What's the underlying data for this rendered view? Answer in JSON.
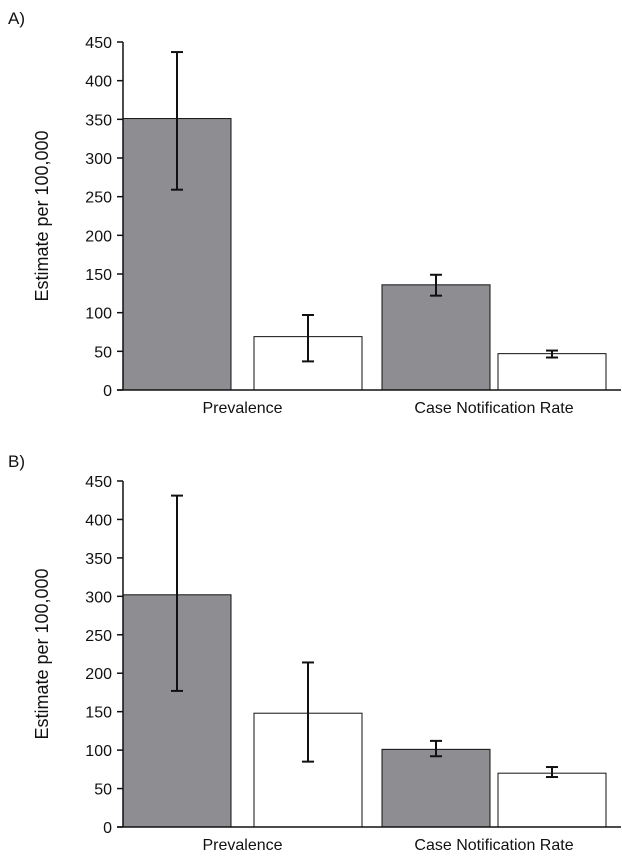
{
  "chart_data": [
    {
      "type": "bar",
      "panel_label": "A)",
      "title": "",
      "xlabel": "",
      "ylabel": "Estimate per 100,000",
      "ylim": [
        0,
        450
      ],
      "yticks": [
        0,
        50,
        100,
        150,
        200,
        250,
        300,
        350,
        400,
        450
      ],
      "grid": false,
      "legend": "none",
      "categories": [
        "Prevalence",
        "Case Notification Rate"
      ],
      "series": [
        {
          "color": "#8e8e92",
          "values": [
            351,
            136
          ],
          "error_low": [
            259,
            122
          ],
          "error_high": [
            437,
            149
          ]
        },
        {
          "color": "#ffffff",
          "values": [
            69,
            47
          ],
          "error_low": [
            37,
            42
          ],
          "error_high": [
            97,
            51
          ]
        }
      ]
    },
    {
      "type": "bar",
      "panel_label": "B)",
      "title": "",
      "xlabel": "",
      "ylabel": "Estimate per 100,000",
      "ylim": [
        0,
        450
      ],
      "yticks": [
        0,
        50,
        100,
        150,
        200,
        250,
        300,
        350,
        400,
        450
      ],
      "grid": false,
      "legend": "none",
      "categories": [
        "Prevalence",
        "Case Notification Rate"
      ],
      "series": [
        {
          "color": "#8e8e92",
          "values": [
            302,
            101
          ],
          "error_low": [
            177,
            92
          ],
          "error_high": [
            431,
            112
          ]
        },
        {
          "color": "#ffffff",
          "values": [
            148,
            70
          ],
          "error_low": [
            85,
            65
          ],
          "error_high": [
            214,
            78
          ]
        }
      ]
    }
  ]
}
